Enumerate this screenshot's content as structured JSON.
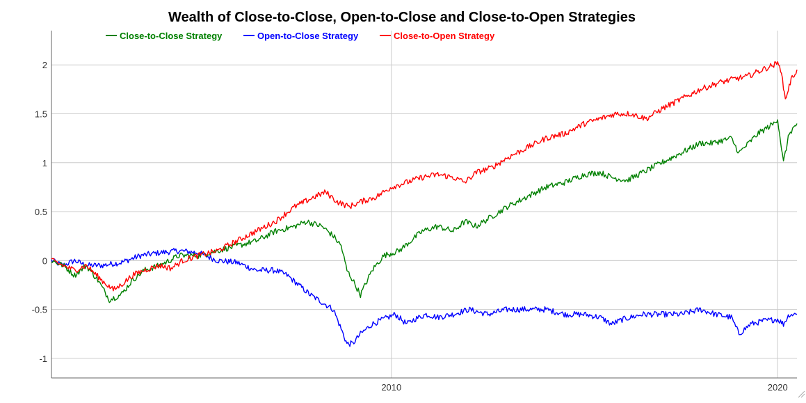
{
  "chart_data": {
    "type": "line",
    "title": "Wealth of Close-to-Close, Open-to-Close and Close-to-Open Strategies",
    "xlabel": "",
    "ylabel": "",
    "xlim": [
      2001.2,
      2020.5
    ],
    "ylim": [
      -1.2,
      2.35
    ],
    "x_ticks": [
      2010,
      2020
    ],
    "x_tick_labels": [
      "2010",
      "2020"
    ],
    "y_ticks": [
      -1,
      -0.5,
      0,
      0.5,
      1,
      1.5,
      2
    ],
    "y_tick_labels": [
      "-1",
      "-0.5",
      "0",
      "0.5",
      "1",
      "1.5",
      "2"
    ],
    "grid": true,
    "legend_position": "top-center",
    "series": [
      {
        "name": "Close-to-Close Strategy",
        "color": "#008000",
        "x": [
          2001.2,
          2001.5,
          2001.8,
          2002.1,
          2002.4,
          2002.7,
          2003.0,
          2003.3,
          2003.6,
          2004.0,
          2004.5,
          2005.0,
          2005.5,
          2006.0,
          2006.5,
          2007.0,
          2007.5,
          2007.8,
          2008.2,
          2008.5,
          2008.7,
          2008.85,
          2009.0,
          2009.2,
          2009.5,
          2009.8,
          2010.2,
          2010.5,
          2010.8,
          2011.2,
          2011.6,
          2011.9,
          2012.2,
          2012.6,
          2013.0,
          2013.5,
          2014.0,
          2014.5,
          2015.0,
          2015.4,
          2015.7,
          2016.1,
          2016.5,
          2017.0,
          2017.5,
          2018.0,
          2018.3,
          2018.8,
          2019.0,
          2019.5,
          2019.9,
          2020.0,
          2020.15,
          2020.3,
          2020.5
        ],
        "values": [
          0.0,
          -0.05,
          -0.15,
          -0.05,
          -0.2,
          -0.4,
          -0.35,
          -0.2,
          -0.1,
          -0.05,
          0.05,
          0.05,
          0.1,
          0.15,
          0.2,
          0.3,
          0.35,
          0.4,
          0.35,
          0.25,
          0.15,
          -0.1,
          -0.2,
          -0.35,
          -0.1,
          0.05,
          0.1,
          0.2,
          0.3,
          0.35,
          0.3,
          0.4,
          0.35,
          0.45,
          0.55,
          0.65,
          0.75,
          0.8,
          0.88,
          0.9,
          0.85,
          0.82,
          0.9,
          1.0,
          1.1,
          1.2,
          1.2,
          1.25,
          1.1,
          1.3,
          1.4,
          1.45,
          1.0,
          1.3,
          1.4
        ]
      },
      {
        "name": "Open-to-Close Strategy",
        "color": "#0000ff",
        "x": [
          2001.2,
          2001.5,
          2001.8,
          2002.1,
          2002.5,
          2003.0,
          2003.5,
          2004.0,
          2004.5,
          2005.0,
          2005.5,
          2006.0,
          2006.5,
          2007.0,
          2007.3,
          2007.6,
          2007.9,
          2008.3,
          2008.5,
          2008.7,
          2008.85,
          2009.0,
          2009.2,
          2009.5,
          2009.8,
          2010.1,
          2010.4,
          2010.6,
          2010.9,
          2011.2,
          2011.6,
          2012.0,
          2012.5,
          2013.0,
          2013.5,
          2014.0,
          2014.5,
          2015.0,
          2015.4,
          2015.7,
          2016.0,
          2016.5,
          2017.0,
          2017.5,
          2018.0,
          2018.4,
          2018.8,
          2019.0,
          2019.3,
          2019.6,
          2020.0,
          2020.15,
          2020.3,
          2020.5
        ],
        "values": [
          0.0,
          -0.05,
          0.0,
          -0.05,
          -0.05,
          -0.02,
          0.05,
          0.08,
          0.1,
          0.08,
          0.0,
          -0.02,
          -0.1,
          -0.1,
          -0.15,
          -0.25,
          -0.35,
          -0.45,
          -0.5,
          -0.7,
          -0.85,
          -0.85,
          -0.75,
          -0.65,
          -0.6,
          -0.55,
          -0.65,
          -0.6,
          -0.55,
          -0.58,
          -0.55,
          -0.5,
          -0.55,
          -0.5,
          -0.5,
          -0.5,
          -0.55,
          -0.55,
          -0.58,
          -0.65,
          -0.6,
          -0.55,
          -0.55,
          -0.55,
          -0.5,
          -0.55,
          -0.58,
          -0.75,
          -0.65,
          -0.62,
          -0.6,
          -0.65,
          -0.55,
          -0.55
        ]
      },
      {
        "name": "Close-to-Open Strategy",
        "color": "#ff0000",
        "x": [
          2001.2,
          2001.5,
          2001.8,
          2002.1,
          2002.5,
          2002.8,
          2003.0,
          2003.3,
          2003.6,
          2004.0,
          2004.3,
          2004.6,
          2005.0,
          2005.5,
          2006.0,
          2006.5,
          2007.0,
          2007.5,
          2008.0,
          2008.3,
          2008.6,
          2008.9,
          2009.2,
          2009.6,
          2010.0,
          2010.4,
          2010.8,
          2011.2,
          2011.6,
          2011.9,
          2012.2,
          2012.6,
          2013.0,
          2013.5,
          2014.0,
          2014.5,
          2015.0,
          2015.4,
          2015.8,
          2016.2,
          2016.6,
          2017.0,
          2017.5,
          2018.0,
          2018.5,
          2018.8,
          2019.2,
          2019.6,
          2019.9,
          2020.05,
          2020.2,
          2020.35,
          2020.5
        ],
        "values": [
          0.0,
          -0.05,
          -0.1,
          -0.05,
          -0.2,
          -0.3,
          -0.25,
          -0.15,
          -0.1,
          -0.05,
          -0.08,
          0.0,
          0.05,
          0.1,
          0.2,
          0.3,
          0.4,
          0.55,
          0.65,
          0.7,
          0.6,
          0.55,
          0.6,
          0.65,
          0.75,
          0.8,
          0.85,
          0.88,
          0.85,
          0.8,
          0.9,
          0.95,
          1.05,
          1.15,
          1.25,
          1.3,
          1.4,
          1.45,
          1.5,
          1.5,
          1.45,
          1.55,
          1.65,
          1.75,
          1.82,
          1.85,
          1.88,
          1.95,
          2.0,
          2.02,
          1.65,
          1.85,
          1.95
        ]
      }
    ]
  }
}
